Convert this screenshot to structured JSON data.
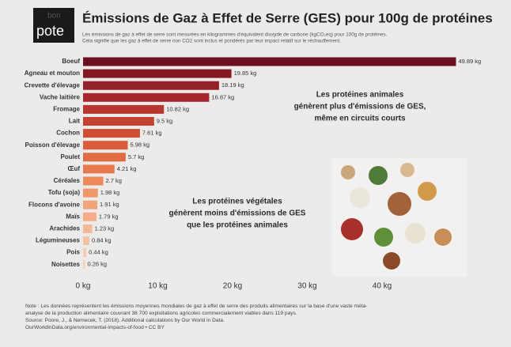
{
  "logo": {
    "small": "bon",
    "large": "pote"
  },
  "chart_data": {
    "type": "hbar",
    "title": "Émissions de Gaz à Effet de Serre (GES) pour 100g de protéines",
    "subtitle": [
      "Les émissions de gaz à effet de serre sont mesurées en kilogrammes d'équivalent dioxyde de carbone (kgCO₂eq) pour 100g de protéines.",
      "Cela signifie que les gaz à effet de serre non CO2 sont inclus et pondérés par leur impact relatif sur le réchauffement."
    ],
    "categories": [
      "Boeuf",
      "Agneau et mouton",
      "Crevette d'élevage",
      "Vache laitière",
      "Fromage",
      "Lait",
      "Cochon",
      "Poisson d'élevage",
      "Poulet",
      "Œuf",
      "Céréales",
      "Tofu (soja)",
      "Flocons d'avoine",
      "Maïs",
      "Arachides",
      "Légumineuses",
      "Pois",
      "Noisettes"
    ],
    "values": [
      49.89,
      19.85,
      18.19,
      16.87,
      10.82,
      9.5,
      7.61,
      5.98,
      5.7,
      4.21,
      2.7,
      1.98,
      1.91,
      1.79,
      1.23,
      0.84,
      0.44,
      0.26
    ],
    "value_labels": [
      "49.89 kg",
      "19.85 kg",
      "18.19 kg",
      "16.87 kg",
      "10.82 kg",
      "9.5 kg",
      "7.61 kg",
      "5.98 kg",
      "5.7 kg",
      "4.21 kg",
      "2.7 kg",
      "1.98 kg",
      "1.91 kg",
      "1.79 kg",
      "1.23 kg",
      "0.84 kg",
      "0.44 kg",
      "0.26 kg"
    ],
    "colors": [
      "#6d0f1f",
      "#861822",
      "#94202a",
      "#a6272c",
      "#b73430",
      "#c3412f",
      "#cf4e33",
      "#da5d3a",
      "#e16b42",
      "#e77a4c",
      "#ec895a",
      "#ef976b",
      "#f1a37a",
      "#f3ae88",
      "#f4b896",
      "#f5c2a3",
      "#f6caae",
      "#f7d2b9"
    ],
    "xlim": [
      0,
      50
    ],
    "xticks": [
      {
        "value": 0,
        "label": "0 kg"
      },
      {
        "value": 10,
        "label": "10 kg"
      },
      {
        "value": 20,
        "label": "20 kg"
      },
      {
        "value": 30,
        "label": "30 kg"
      },
      {
        "value": 40,
        "label": "40 kg"
      }
    ],
    "annotations": [
      {
        "lines": [
          "Les protéines animales",
          "génèrent plus d'émissions de GES,",
          "même en circuits courts"
        ],
        "color": "#2a2a2a"
      },
      {
        "lines": [
          "Les protéines végétales",
          "génèrent moins d'émissions de GES",
          "que les protéines animales"
        ],
        "color": "#2a2a2a"
      }
    ],
    "notes": [
      "Note : Les données représentent les émissions moyennes mondiales de gaz à effet de serre des produits alimentaires sur la base d'une vaste méta-",
      "analyse de la production alimentaire couvrant 38 700 exploitations agricoles commercialement viables dans 119 pays.",
      "Source: Poore, J., & Nemecek, T. (2018). Additional calculations by Our World in Data.",
      "OurWorldInData.org/environmental-impacts-of-food • CC BY"
    ]
  }
}
